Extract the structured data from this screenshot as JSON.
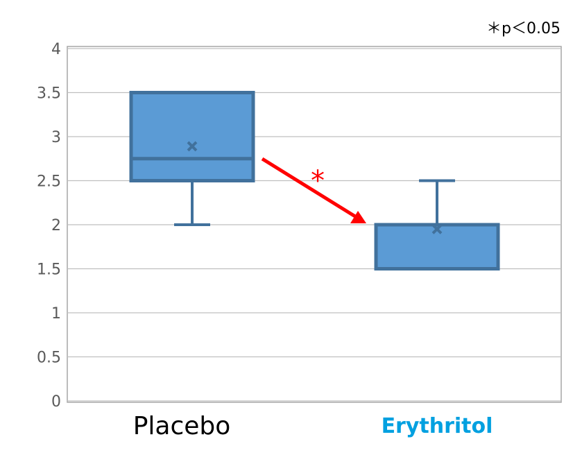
{
  "chart_data": {
    "type": "box",
    "categories": [
      "Placebo",
      "Erythritol"
    ],
    "category_colors": [
      "#000000",
      "#00a0e0"
    ],
    "boxes": [
      {
        "category": "Placebo",
        "min": 2.0,
        "q1": 2.5,
        "median": 2.75,
        "q3": 3.5,
        "max": 3.5,
        "mean": 2.89
      },
      {
        "category": "Erythritol",
        "min": 1.5,
        "q1": 1.5,
        "median": 2.0,
        "q3": 2.0,
        "max": 2.5,
        "mean": 1.95
      }
    ],
    "ylim": [
      0,
      4
    ],
    "yticks": [
      "0",
      "0.5",
      "1",
      "1.5",
      "2",
      "2.5",
      "3",
      "3.5",
      "4"
    ],
    "grid": true,
    "box_fill": "#5b9bd5",
    "box_stroke": "#41719c",
    "annotation": {
      "marker": "*",
      "color": "#ff0000",
      "from": "Placebo",
      "to": "Erythritol"
    },
    "significance_note": "＊p＜0.05"
  }
}
